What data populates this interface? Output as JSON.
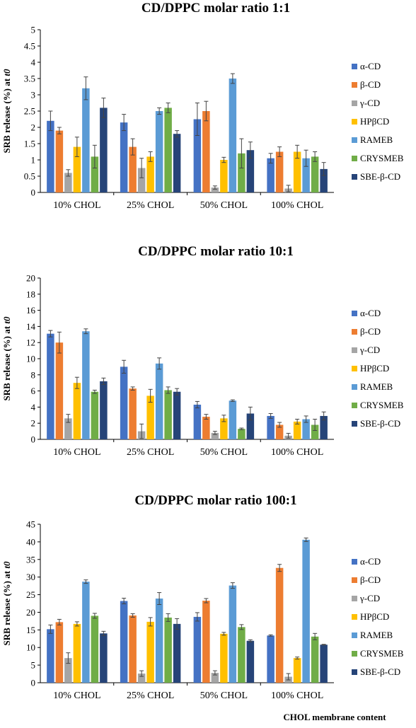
{
  "x_axis_title": "CHOL membrane content",
  "series_colors": [
    "#4472c4",
    "#ed7d31",
    "#a5a5a5",
    "#ffc000",
    "#5b9bd5",
    "#70ad47",
    "#264478"
  ],
  "chart_data": [
    {
      "type": "bar",
      "title": "CD/DPPC molar ratio 1:1",
      "ylabel": "SRB release (%) at t0",
      "ylabel_parts": [
        "SRB release (%) at ",
        "t0"
      ],
      "ylim": [
        0,
        5
      ],
      "yticks": [
        "0",
        "0.5",
        "1",
        "1.5",
        "2",
        "2.5",
        "3",
        "3.5",
        "4",
        "4.5",
        "5"
      ],
      "categories": [
        "10% CHOL",
        "25% CHOL",
        "50% CHOL",
        "100% CHOL"
      ],
      "legend_position": "right",
      "series": [
        {
          "name": "α-CD",
          "values": [
            2.2,
            2.15,
            2.25,
            1.05
          ],
          "errors": [
            0.3,
            0.25,
            0.5,
            0.15
          ]
        },
        {
          "name": "β-CD",
          "values": [
            1.9,
            1.4,
            2.5,
            1.25
          ],
          "errors": [
            0.1,
            0.25,
            0.3,
            0.15
          ]
        },
        {
          "name": "γ-CD",
          "values": [
            0.6,
            0.75,
            0.15,
            0.12
          ],
          "errors": [
            0.1,
            0.3,
            0.05,
            0.1
          ]
        },
        {
          "name": "HPβCD",
          "values": [
            1.4,
            1.1,
            1.0,
            1.25
          ],
          "errors": [
            0.3,
            0.15,
            0.08,
            0.2
          ]
        },
        {
          "name": "RAMEB",
          "values": [
            3.2,
            2.5,
            3.5,
            1.05
          ],
          "errors": [
            0.35,
            0.1,
            0.15,
            0.25
          ]
        },
        {
          "name": "CRYSMEB",
          "values": [
            1.1,
            2.6,
            1.2,
            1.1
          ],
          "errors": [
            0.35,
            0.15,
            0.45,
            0.15
          ]
        },
        {
          "name": "SBE-β-CD",
          "values": [
            2.6,
            1.8,
            1.3,
            0.72
          ],
          "errors": [
            0.3,
            0.1,
            0.25,
            0.2
          ]
        }
      ]
    },
    {
      "type": "bar",
      "title": "CD/DPPC molar ratio 10:1",
      "ylabel": "SRB release (%) at t0",
      "ylabel_parts": [
        "SRB release (%) at ",
        "t0"
      ],
      "ylim": [
        0,
        20
      ],
      "yticks": [
        "0",
        "2",
        "4",
        "6",
        "8",
        "10",
        "12",
        "14",
        "16",
        "18",
        "20"
      ],
      "categories": [
        "10% CHOL",
        "25% CHOL",
        "50% CHOL",
        "100% CHOL"
      ],
      "legend_position": "right",
      "series": [
        {
          "name": "α-CD",
          "values": [
            13.1,
            9.0,
            4.3,
            2.9
          ],
          "errors": [
            0.4,
            0.8,
            0.4,
            0.3
          ]
        },
        {
          "name": "β-CD",
          "values": [
            12.0,
            6.3,
            2.8,
            1.8
          ],
          "errors": [
            1.3,
            0.2,
            0.3,
            0.3
          ]
        },
        {
          "name": "γ-CD",
          "values": [
            2.6,
            1.0,
            0.8,
            0.45
          ],
          "errors": [
            0.5,
            0.9,
            0.2,
            0.3
          ]
        },
        {
          "name": "HPβCD",
          "values": [
            7.0,
            5.4,
            2.6,
            2.2
          ],
          "errors": [
            0.7,
            0.8,
            0.4,
            0.3
          ]
        },
        {
          "name": "RAMEB",
          "values": [
            13.4,
            9.4,
            4.8,
            2.5
          ],
          "errors": [
            0.3,
            0.7,
            0.1,
            0.4
          ]
        },
        {
          "name": "CRYSMEB",
          "values": [
            5.9,
            6.1,
            1.3,
            1.8
          ],
          "errors": [
            0.2,
            0.4,
            0.1,
            0.7
          ]
        },
        {
          "name": "SBE-β-CD",
          "values": [
            7.2,
            5.9,
            3.2,
            2.9
          ],
          "errors": [
            0.4,
            0.4,
            0.8,
            0.5
          ]
        }
      ]
    },
    {
      "type": "bar",
      "title": "CD/DPPC molar ratio 100:1",
      "ylabel": "SRB release (%) at t0",
      "ylabel_parts": [
        "SRB release (%) at ",
        "t0"
      ],
      "ylim": [
        0,
        45
      ],
      "yticks": [
        "0",
        "5",
        "10",
        "15",
        "20",
        "25",
        "30",
        "35",
        "40",
        "45"
      ],
      "categories": [
        "10% CHOL",
        "25% CHOL",
        "50% CHOL",
        "100% CHOL"
      ],
      "legend_position": "right",
      "series": [
        {
          "name": "α-CD",
          "values": [
            15.2,
            23.2,
            18.7,
            13.4
          ],
          "errors": [
            1.2,
            0.8,
            1.2,
            0.2
          ]
        },
        {
          "name": "β-CD",
          "values": [
            17.2,
            19.1,
            23.3,
            32.6
          ],
          "errors": [
            0.8,
            0.5,
            0.6,
            1.0
          ]
        },
        {
          "name": "γ-CD",
          "values": [
            7.0,
            2.6,
            2.8,
            1.7
          ],
          "errors": [
            1.5,
            0.8,
            0.6,
            0.9
          ]
        },
        {
          "name": "HPβCD",
          "values": [
            16.7,
            17.3,
            13.9,
            7.0
          ],
          "errors": [
            0.6,
            1.2,
            0.4,
            0.3
          ]
        },
        {
          "name": "RAMEB",
          "values": [
            28.7,
            23.9,
            27.6,
            40.6
          ],
          "errors": [
            0.5,
            1.7,
            0.8,
            0.5
          ]
        },
        {
          "name": "CRYSMEB",
          "values": [
            19.0,
            18.5,
            15.8,
            13.1
          ],
          "errors": [
            0.7,
            1.1,
            0.7,
            0.9
          ]
        },
        {
          "name": "SBE-β-CD",
          "values": [
            14.0,
            16.7,
            11.9,
            10.8
          ],
          "errors": [
            0.6,
            1.5,
            0.3,
            0.1
          ]
        }
      ]
    }
  ]
}
